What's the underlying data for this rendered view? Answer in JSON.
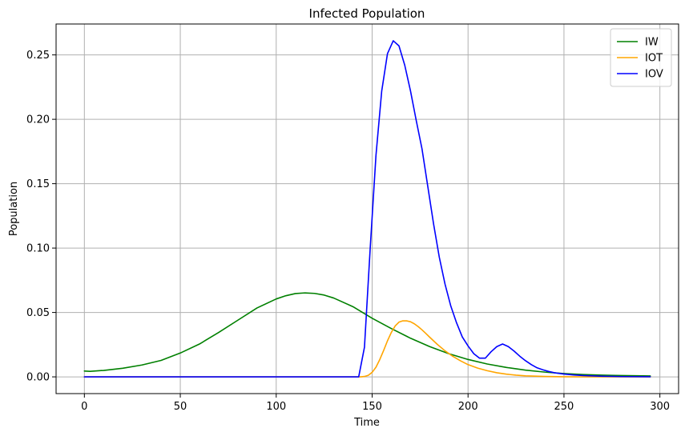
{
  "chart_data": {
    "type": "line",
    "title": "Infected Population",
    "xlabel": "Time",
    "ylabel": "Population",
    "xlim": [
      -14.75,
      309.75
    ],
    "ylim": [
      -0.013,
      0.274
    ],
    "xticks": [
      0,
      50,
      100,
      150,
      200,
      250,
      300
    ],
    "yticks": [
      0.0,
      0.05,
      0.1,
      0.15,
      0.2,
      0.25
    ],
    "ytick_labels": [
      "0.00",
      "0.05",
      "0.10",
      "0.15",
      "0.20",
      "0.25"
    ],
    "grid": true,
    "legend_position": "top-right",
    "series": [
      {
        "name": "IW",
        "color": "#008000",
        "x": [
          0,
          3,
          10,
          20,
          30,
          40,
          50,
          60,
          70,
          80,
          90,
          100,
          105,
          110,
          115,
          120,
          125,
          130,
          140,
          150,
          160,
          170,
          180,
          190,
          200,
          210,
          220,
          230,
          240,
          250,
          260,
          270,
          280,
          295
        ],
        "y": [
          0.0045,
          0.0043,
          0.005,
          0.0067,
          0.0092,
          0.0128,
          0.0185,
          0.0255,
          0.0345,
          0.044,
          0.0535,
          0.0605,
          0.063,
          0.0647,
          0.0652,
          0.0648,
          0.0635,
          0.0612,
          0.0545,
          0.0455,
          0.0375,
          0.03,
          0.0235,
          0.018,
          0.0135,
          0.01,
          0.0073,
          0.0052,
          0.0037,
          0.0026,
          0.0018,
          0.0013,
          0.001,
          0.0007
        ]
      },
      {
        "name": "IOT",
        "color": "#ffa500",
        "x": [
          0,
          144,
          146,
          148,
          150,
          152,
          154,
          156,
          158,
          160,
          162,
          164,
          166,
          168,
          170,
          172,
          174,
          176,
          178,
          180,
          184,
          188,
          192,
          196,
          200,
          205,
          210,
          215,
          220,
          225,
          230,
          240,
          250,
          260,
          295
        ],
        "y": [
          0.0,
          0.0,
          0.0003,
          0.0012,
          0.0035,
          0.0075,
          0.0135,
          0.0205,
          0.028,
          0.0345,
          0.0395,
          0.0425,
          0.0435,
          0.0435,
          0.0428,
          0.0412,
          0.039,
          0.0365,
          0.0337,
          0.0308,
          0.0252,
          0.0202,
          0.016,
          0.0125,
          0.0095,
          0.0068,
          0.0048,
          0.0032,
          0.0021,
          0.0013,
          0.0008,
          0.0003,
          0.0001,
          0.0,
          0.0
        ]
      },
      {
        "name": "IOV",
        "color": "#0000ff",
        "x": [
          0,
          143,
          146,
          149,
          152,
          155,
          158,
          161,
          164,
          167,
          170,
          173,
          176,
          179,
          182,
          185,
          188,
          191,
          194,
          197,
          200,
          203,
          206,
          209,
          212,
          215,
          218,
          221,
          224,
          227,
          230,
          233,
          236,
          239,
          242,
          245,
          250,
          255,
          260,
          270,
          280,
          295
        ],
        "y": [
          0.0,
          0.0,
          0.023,
          0.1,
          0.172,
          0.222,
          0.251,
          0.261,
          0.257,
          0.242,
          0.222,
          0.199,
          0.177,
          0.148,
          0.119,
          0.093,
          0.072,
          0.055,
          0.042,
          0.031,
          0.024,
          0.018,
          0.0145,
          0.0145,
          0.0195,
          0.0235,
          0.0255,
          0.0235,
          0.02,
          0.016,
          0.0125,
          0.0095,
          0.007,
          0.0055,
          0.0042,
          0.0032,
          0.0022,
          0.0015,
          0.001,
          0.0005,
          0.0002,
          0.0001
        ]
      }
    ]
  }
}
